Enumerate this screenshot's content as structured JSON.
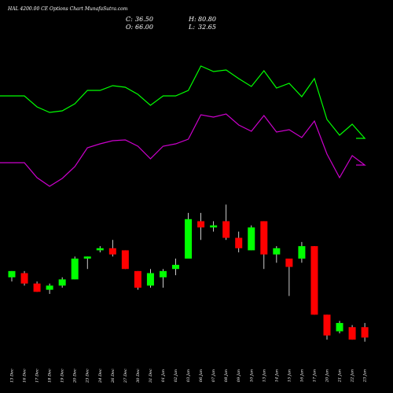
{
  "chart_data": {
    "type": "candlestick",
    "title": "HAL 4200.00 CE Options Chart MunafaSutra.com",
    "ohlc_readout": {
      "close_label": "C:",
      "close": "36.50",
      "high_label": "H:",
      "high": "80.80",
      "open_label": "O:",
      "open": "66.00",
      "low_label": "L:",
      "low": "32.65"
    },
    "colors": {
      "background": "#000000",
      "up": "#00ff00",
      "down": "#ff0000",
      "wick": "#ffffff",
      "line_upper": "#00ff00",
      "line_lower": "#cc00cc"
    },
    "categories": [
      "13 Dec",
      "16 Dec",
      "17 Dec",
      "18 Dec",
      "19 Dec",
      "20 Dec",
      "23 Dec",
      "24 Dec",
      "26 Dec",
      "27 Dec",
      "30 Dec",
      "31 Dec",
      "01 Jan",
      "02 Jan",
      "03 Jan",
      "06 Jan",
      "07 Jan",
      "08 Jan",
      "09 Jan",
      "10 Jan",
      "13 Jan",
      "14 Jan",
      "15 Jan",
      "16 Jan",
      "17 Jan",
      "20 Jan",
      "21 Jan",
      "22 Jan",
      "23 Jan"
    ],
    "candles": [
      {
        "o": 58,
        "h": 61,
        "l": 56,
        "c": 61
      },
      {
        "o": 60,
        "h": 61,
        "l": 54,
        "c": 55
      },
      {
        "o": 55,
        "h": 56,
        "l": 51,
        "c": 51
      },
      {
        "o": 52,
        "h": 55,
        "l": 50,
        "c": 54
      },
      {
        "o": 54,
        "h": 58,
        "l": 53,
        "c": 57
      },
      {
        "o": 57,
        "h": 68,
        "l": 57,
        "c": 67
      },
      {
        "o": 67,
        "h": 68,
        "l": 62,
        "c": 68
      },
      {
        "o": 71,
        "h": 73,
        "l": 70,
        "c": 72
      },
      {
        "o": 72,
        "h": 76,
        "l": 68,
        "c": 69
      },
      {
        "o": 71,
        "h": 71,
        "l": 62,
        "c": 62
      },
      {
        "o": 61,
        "h": 61,
        "l": 52,
        "c": 53
      },
      {
        "o": 54,
        "h": 62,
        "l": 53,
        "c": 60
      },
      {
        "o": 58,
        "h": 62,
        "l": 53,
        "c": 61
      },
      {
        "o": 62,
        "h": 67,
        "l": 59,
        "c": 64
      },
      {
        "o": 67,
        "h": 89,
        "l": 67,
        "c": 86
      },
      {
        "o": 85,
        "h": 89,
        "l": 76,
        "c": 82
      },
      {
        "o": 82,
        "h": 85,
        "l": 80,
        "c": 83
      },
      {
        "o": 85,
        "h": 93,
        "l": 76,
        "c": 77
      },
      {
        "o": 77,
        "h": 80,
        "l": 70,
        "c": 72
      },
      {
        "o": 71,
        "h": 83,
        "l": 71,
        "c": 82
      },
      {
        "o": 85,
        "h": 85,
        "l": 62,
        "c": 69
      },
      {
        "o": 69,
        "h": 73,
        "l": 65,
        "c": 72
      },
      {
        "o": 67,
        "h": 67,
        "l": 49,
        "c": 63
      },
      {
        "o": 67,
        "h": 75,
        "l": 65,
        "c": 73
      },
      {
        "o": 73,
        "h": 73,
        "l": 40,
        "c": 40
      },
      {
        "o": 40,
        "h": 40,
        "l": 28,
        "c": 30
      },
      {
        "o": 32,
        "h": 37,
        "l": 31,
        "c": 36
      },
      {
        "o": 34,
        "h": 35,
        "l": 28,
        "c": 28
      },
      {
        "o": 34,
        "h": 36,
        "l": 27,
        "c": 29
      }
    ],
    "upper_line": [
      122,
      122,
      136,
      143,
      141,
      132,
      115,
      115,
      109,
      111,
      120,
      134,
      122,
      122,
      115,
      84,
      91,
      89,
      100,
      110,
      90,
      112,
      106,
      123,
      100,
      152,
      172,
      158,
      176
    ],
    "lower_line": [
      207,
      207,
      226,
      237,
      227,
      212,
      188,
      183,
      179,
      178,
      186,
      202,
      186,
      183,
      177,
      146,
      149,
      145,
      159,
      167,
      147,
      168,
      165,
      175,
      154,
      196,
      226,
      198,
      210
    ]
  }
}
